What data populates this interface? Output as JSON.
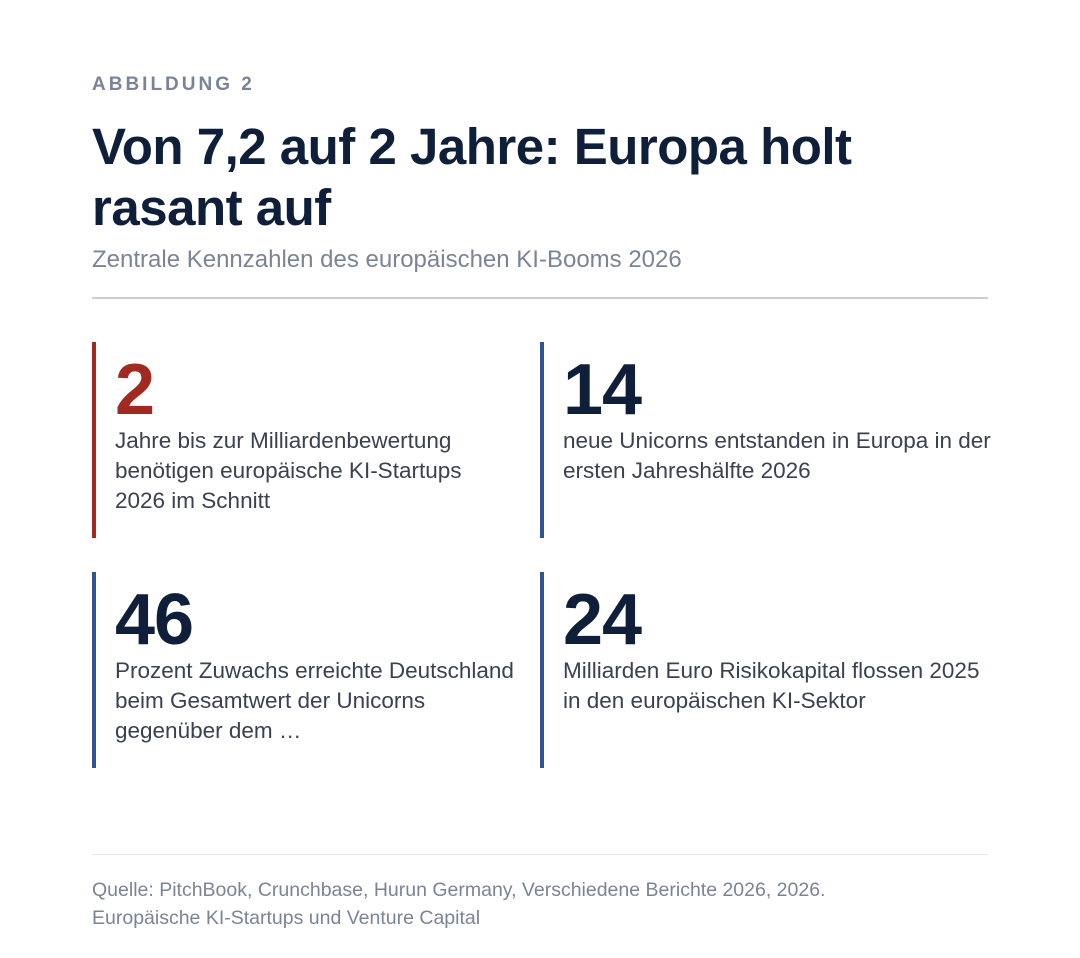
{
  "figure": {
    "kicker": "ABBILDUNG 2",
    "title": "Von 7,2 auf 2 Jahre: Europa holt rasant auf",
    "subtitle": "Zentrale Kennzahlen des europäischen KI-Booms 2026"
  },
  "stats": [
    {
      "value": "2",
      "description": "Jahre bis zur Milliardenbewertung benötigen europäische KI-Startups 2026 im Schnitt",
      "accent_color": "#a02a22"
    },
    {
      "value": "14",
      "description": "neue Unicorns entstanden in Europa in der ersten Jahreshälfte 2026",
      "accent_color": "#2f5597"
    },
    {
      "value": "46",
      "description": "Prozent Zuwachs erreichte Deutschland beim Gesamtwert der Unicorns gegenüber dem …",
      "accent_color": "#2f5597"
    },
    {
      "value": "24",
      "description": "Milliarden Euro Risikokapital flossen 2025 in den europäischen KI-Sektor",
      "accent_color": "#2f5597"
    }
  ],
  "source": {
    "line1": "Quelle: PitchBook, Crunchbase, Hurun Germany, Verschiedene Berichte 2026, 2026.",
    "line2": "Europäische KI-Startups und Venture Capital"
  },
  "colors": {
    "text_primary": "#0f1f3a",
    "text_muted": "#7b8497",
    "highlight": "#a02a22",
    "bar": "#2f5597"
  }
}
